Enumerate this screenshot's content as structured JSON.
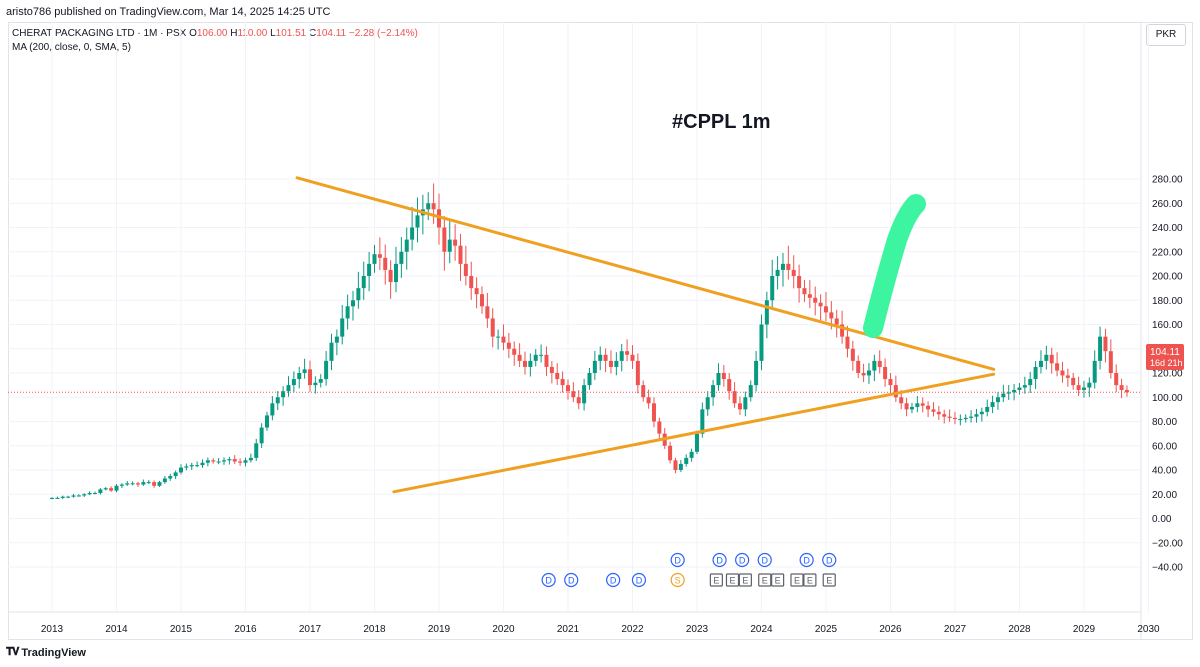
{
  "header": {
    "published": "aristo786 published on TradingView.com, Mar 14, 2025 14:25 UTC"
  },
  "legend": {
    "symbol": "CHERAT PACKAGING LTD · 1M · PSX",
    "o_label": "O",
    "o_value": "106.00",
    "h_label": "H",
    "h_value": "110.00",
    "l_label": "L",
    "l_value": "101.51",
    "c_label": "C",
    "c_value": "104.11",
    "change": "−2.28 (−2.14%)",
    "indicator": "MA (200, close, 0, SMA, 5)"
  },
  "currency": "PKR",
  "price_tag": {
    "price": "104.11",
    "countdown": "16d 21h",
    "color": "#ef5350"
  },
  "annotation": "#CPPL 1m",
  "footer": {
    "brand": "TradingView",
    "logo_icon": "tradingview-logo-icon"
  },
  "colors": {
    "up": "#089981",
    "down": "#ef5350",
    "pattern": "#f0a020",
    "arrow": "#3df5a0",
    "dividend": "#2962ff",
    "split": "#f0a020",
    "earnings": "#5d606b"
  },
  "chart_data": {
    "type": "candlestick",
    "interval": "1M",
    "ylim": [
      -45,
      290
    ],
    "y_ticks": [
      "280.00",
      "260.00",
      "240.00",
      "220.00",
      "200.00",
      "180.00",
      "160.00",
      "140.00",
      "120.00",
      "100.00",
      "80.00",
      "60.00",
      "40.00",
      "20.00",
      "0.00",
      "−20.00",
      "−40.00"
    ],
    "x_ticks": [
      "2013",
      "2014",
      "2015",
      "2016",
      "2017",
      "2018",
      "2019",
      "2020",
      "2021",
      "2022",
      "2023",
      "2024",
      "2025",
      "2026",
      "2027",
      "2028",
      "2029",
      "2030"
    ],
    "grid": true,
    "last_price": 104.11,
    "candles_start": 2013.0,
    "candles_step_years": 0.08333,
    "closes": [
      17,
      17,
      18,
      18,
      19,
      19,
      20,
      21,
      21,
      24,
      25,
      23,
      27,
      28,
      29,
      29,
      28,
      30,
      30,
      27,
      30,
      33,
      35,
      38,
      42,
      43,
      44,
      44,
      46,
      48,
      47,
      47,
      48,
      49,
      47,
      46,
      48,
      50,
      62,
      75,
      85,
      95,
      100,
      105,
      110,
      115,
      120,
      123,
      110,
      112,
      115,
      130,
      145,
      150,
      165,
      175,
      180,
      190,
      200,
      210,
      218,
      215,
      205,
      195,
      210,
      220,
      230,
      240,
      250,
      255,
      260,
      255,
      240,
      220,
      230,
      225,
      210,
      200,
      190,
      185,
      175,
      165,
      150,
      150,
      145,
      140,
      135,
      130,
      125,
      130,
      135,
      135,
      125,
      120,
      115,
      110,
      105,
      100,
      95,
      110,
      120,
      130,
      135,
      130,
      125,
      130,
      138,
      135,
      130,
      110,
      100,
      95,
      80,
      70,
      60,
      48,
      40,
      45,
      50,
      55,
      70,
      90,
      100,
      110,
      120,
      115,
      105,
      95,
      90,
      100,
      110,
      130,
      160,
      180,
      200,
      205,
      210,
      205,
      200,
      190,
      185,
      182,
      178,
      175,
      170,
      165,
      160,
      150,
      140,
      130,
      120,
      118,
      122,
      130,
      125,
      115,
      110,
      100,
      95,
      90,
      92,
      95,
      93,
      90,
      88,
      86,
      84,
      83,
      82,
      82,
      83,
      84,
      86,
      88,
      92,
      96,
      100,
      103,
      104,
      106,
      108,
      110,
      115,
      125,
      130,
      135,
      128,
      122,
      118,
      116,
      110,
      106,
      108,
      112,
      130,
      150,
      138,
      120,
      110,
      106,
      104.11
    ],
    "support_line": {
      "from": [
        "2018.3",
        22
      ],
      "to": [
        "2027.6",
        119
      ]
    },
    "resistance_line": {
      "from": [
        "2016.8",
        281
      ],
      "to": [
        "2027.6",
        123
      ]
    },
    "events": {
      "dividends_row1": [
        "2022.7",
        "2023.35",
        "2023.7",
        "2024.05",
        "2024.7",
        "2025.05"
      ],
      "dividends_row2": [
        "2020.7",
        "2021.05",
        "2021.7",
        "2022.1"
      ],
      "split": [
        "2022.7"
      ],
      "earnings": [
        "2023.3",
        "2023.55",
        "2023.75",
        "2024.05",
        "2024.25",
        "2024.55",
        "2024.75",
        "2025.05"
      ]
    }
  }
}
